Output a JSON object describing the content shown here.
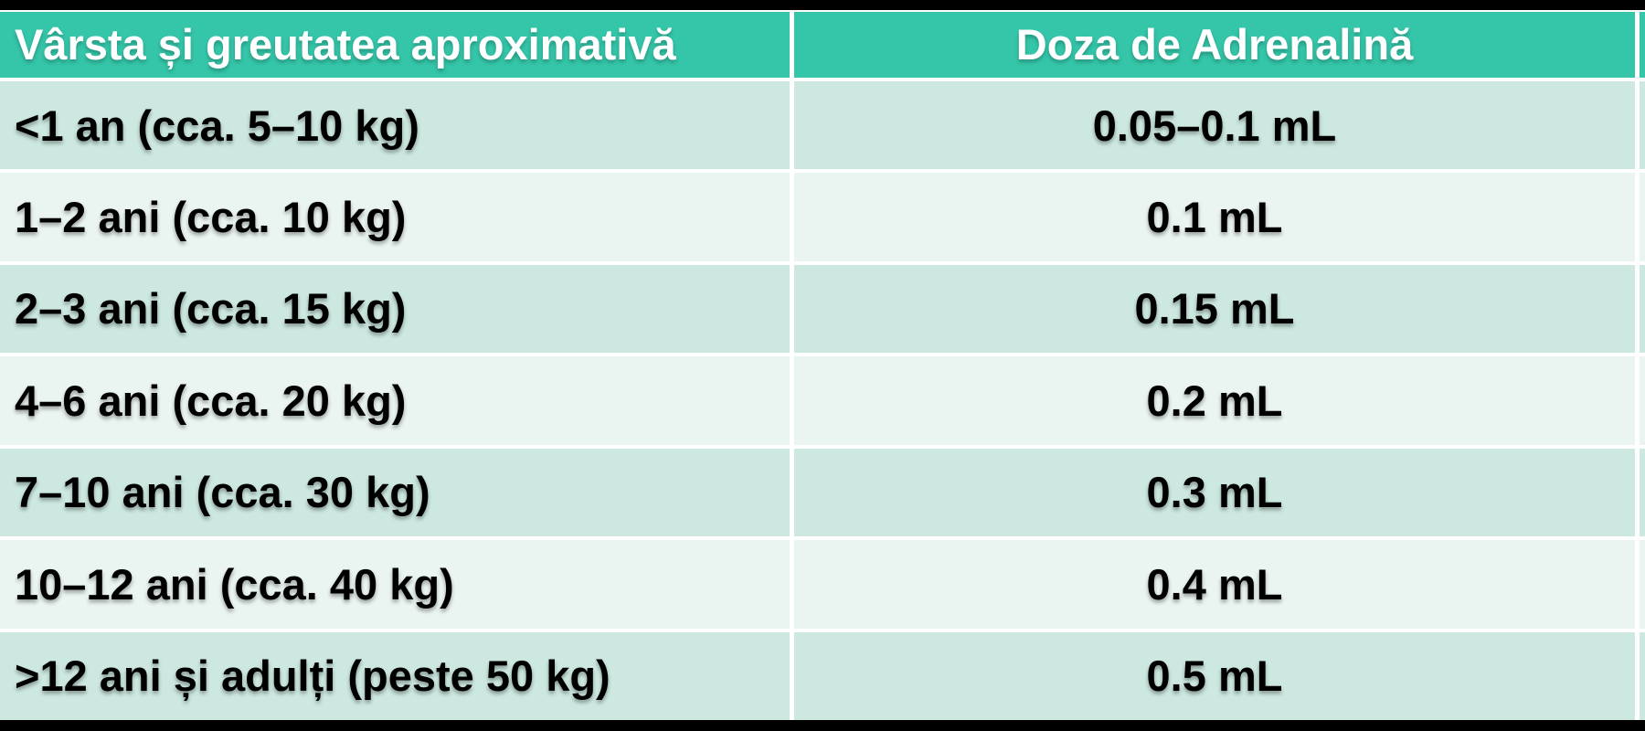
{
  "colors": {
    "header_bg": "#35C6A9",
    "row_dark": "#CDE8E1",
    "row_light": "#EAF4F0",
    "header_text": "#FFFFFF",
    "body_text": "#000000",
    "frame": "#000000",
    "separator": "#FFFFFF"
  },
  "table": {
    "headers": {
      "age_weight": "Vârsta și greutatea aproximativă",
      "dose": "Doza de Adrenalină"
    },
    "rows": [
      {
        "age": "<1 an (cca. 5–10 kg)",
        "dose": "0.05–0.1 mL"
      },
      {
        "age": "1–2 ani (cca. 10 kg)",
        "dose": "0.1 mL"
      },
      {
        "age": "2–3 ani (cca. 15 kg)",
        "dose": "0.15 mL"
      },
      {
        "age": "4–6 ani (cca. 20 kg)",
        "dose": "0.2 mL"
      },
      {
        "age": "7–10 ani (cca. 30 kg)",
        "dose": "0.3 mL"
      },
      {
        "age": "10–12 ani (cca. 40 kg)",
        "dose": "0.4 mL"
      },
      {
        "age": ">12 ani și adulți (peste 50 kg)",
        "dose": "0.5 mL"
      }
    ]
  }
}
